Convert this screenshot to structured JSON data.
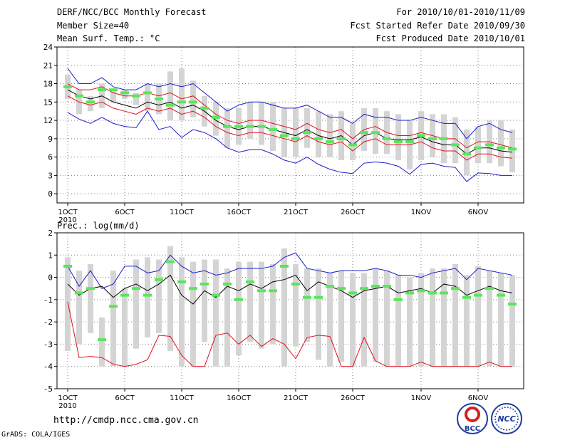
{
  "header": {
    "title": "DERF/NCC/BCC Monthly Forecast",
    "member_size": "Member Size=40",
    "variable": "Mean Surf. Temp.: °C",
    "period": "For 2010/10/01-2010/11/09",
    "fcst_started": "Fcst Started Refer Date 2010/09/30",
    "fcst_produced": "Fcst Produced Date 2010/10/01"
  },
  "footer": {
    "url": "http://cmdp.ncc.cma.gov.cn",
    "credit": "GrADS: COLA/IGES",
    "logo_bcc_text": "BCC",
    "logo_ncc_text": "NCC"
  },
  "colors": {
    "box": "#d4d4d4",
    "median": "#000000",
    "quartile_lines": "#e0101e",
    "extreme_lines": "#1c1ccc",
    "mean_marker": "#5ae65a",
    "grid": "#808080"
  },
  "chart_data": [
    {
      "type": "line",
      "title": "Mean Surf. Temp.: °C",
      "x_start_label": "1OCT 2010",
      "x_ticks": [
        "1OCT",
        "6OCT",
        "11OCT",
        "16OCT",
        "21OCT",
        "26OCT",
        "1NOV",
        "6NOV"
      ],
      "x_tick_days": [
        1,
        6,
        11,
        16,
        21,
        26,
        32,
        37
      ],
      "year_label": "2010",
      "ylim": [
        -1.5,
        24
      ],
      "yticks": [
        0,
        3,
        6,
        9,
        12,
        15,
        18,
        21,
        24
      ],
      "days": [
        1,
        2,
        3,
        4,
        5,
        6,
        7,
        8,
        9,
        10,
        11,
        12,
        13,
        14,
        15,
        16,
        17,
        18,
        19,
        20,
        21,
        22,
        23,
        24,
        25,
        26,
        27,
        28,
        29,
        30,
        31,
        32,
        33,
        34,
        35,
        36,
        37,
        38,
        39,
        40
      ],
      "series": [
        {
          "name": "max",
          "values": [
            20.5,
            18,
            18,
            19,
            17.5,
            17,
            17,
            18,
            17.5,
            18,
            17.5,
            18,
            16.5,
            15,
            13.5,
            14.5,
            15,
            15,
            14.5,
            14,
            14,
            14.5,
            13.5,
            12.5,
            12.5,
            11.5,
            13,
            12.5,
            12.5,
            12,
            12,
            12.5,
            12,
            11.5,
            11.5,
            9,
            11,
            11.5,
            10.5,
            10
          ]
        },
        {
          "name": "upper_quartile",
          "values": [
            18,
            17,
            17,
            17.5,
            16.5,
            16,
            16,
            16.5,
            16,
            16.5,
            15.5,
            16,
            14.5,
            13,
            12,
            11.5,
            12,
            12,
            11.5,
            11,
            10.5,
            11.5,
            10.5,
            10,
            10.5,
            9,
            10.5,
            11,
            10,
            9.5,
            9.5,
            10,
            9.5,
            9,
            9,
            7.5,
            8.5,
            8.5,
            8,
            7.5
          ]
        },
        {
          "name": "median",
          "values": [
            17,
            16,
            15.5,
            16,
            15,
            14.5,
            14,
            15,
            14.5,
            15,
            14,
            14.5,
            13.5,
            12,
            11,
            10.5,
            11,
            11,
            10.5,
            10,
            9.5,
            10.5,
            9.5,
            9,
            9.5,
            8,
            9.5,
            10,
            9,
            8.8,
            8.8,
            9.3,
            8.5,
            8,
            8,
            6.5,
            7.5,
            7.5,
            7,
            6.8
          ]
        },
        {
          "name": "lower_quartile",
          "values": [
            16,
            15,
            14.5,
            15,
            14,
            13.5,
            13,
            14,
            13.5,
            14,
            13,
            13.5,
            12.5,
            11,
            10,
            9.5,
            10,
            10,
            9.5,
            9,
            8.5,
            9.5,
            8.5,
            8,
            8.5,
            7,
            8.5,
            9,
            8,
            8,
            8,
            8.5,
            7.5,
            7,
            7,
            5.5,
            6.5,
            6.5,
            6,
            5.8
          ]
        },
        {
          "name": "min",
          "values": [
            13.3,
            12.2,
            11.5,
            12.5,
            11.5,
            11,
            10.8,
            13.5,
            10.5,
            11,
            9.2,
            10.5,
            10,
            9,
            7.5,
            6.8,
            7.2,
            7.2,
            6.5,
            5.5,
            5,
            6,
            4.8,
            4,
            3.5,
            3.3,
            5,
            5.2,
            5,
            4.5,
            3.2,
            4.8,
            5,
            4.5,
            4.3,
            2,
            3.4,
            3.3,
            3,
            3
          ]
        },
        {
          "name": "box_top",
          "values": [
            19.5,
            17,
            16,
            18,
            17,
            17,
            16.5,
            18,
            18,
            20,
            20.5,
            18.5,
            16,
            15,
            14,
            14,
            15,
            15,
            15,
            14,
            14,
            14,
            13.5,
            13,
            13.5,
            11.5,
            14,
            14,
            13.5,
            13,
            12,
            13.5,
            13,
            13,
            12.5,
            10.5,
            11,
            12,
            12,
            10.5
          ]
        },
        {
          "name": "box_bottom",
          "values": [
            15.5,
            13,
            13.5,
            14,
            15,
            15.5,
            14.5,
            13.5,
            13,
            12,
            12,
            12.5,
            11,
            9.5,
            7.5,
            8,
            9,
            8,
            7,
            6,
            6,
            7.5,
            6,
            6,
            5.5,
            5.5,
            7,
            6.5,
            6.5,
            5.5,
            4,
            5.5,
            6,
            5,
            5,
            3,
            5,
            5,
            4.5,
            3.5
          ]
        },
        {
          "name": "mean",
          "values": [
            17.5,
            16,
            15,
            17,
            17,
            16.5,
            16,
            16.5,
            15.5,
            14.5,
            15,
            15,
            14,
            12.5,
            11,
            11,
            11,
            11,
            10.5,
            9.5,
            9,
            10,
            9,
            8.5,
            9,
            8,
            10,
            10,
            9,
            8.5,
            8.5,
            9.5,
            9,
            9,
            8,
            6.5,
            7.5,
            8,
            7.5,
            7.3
          ]
        }
      ]
    },
    {
      "type": "line",
      "title": "Prec.: log(mm/d)",
      "x_ticks": [
        "1OCT",
        "6OCT",
        "11OCT",
        "16OCT",
        "21OCT",
        "26OCT",
        "1NOV",
        "6NOV"
      ],
      "x_tick_days": [
        1,
        6,
        11,
        16,
        21,
        26,
        32,
        37
      ],
      "year_label": "2010",
      "ylim": [
        -5,
        2
      ],
      "yticks": [
        -5,
        -4,
        -3,
        -2,
        -1,
        0,
        1,
        2
      ],
      "days": [
        1,
        2,
        3,
        4,
        5,
        6,
        7,
        8,
        9,
        10,
        11,
        12,
        13,
        14,
        15,
        16,
        17,
        18,
        19,
        20,
        21,
        22,
        23,
        24,
        25,
        26,
        27,
        28,
        29,
        30,
        31,
        32,
        33,
        34,
        35,
        36,
        37,
        38,
        39,
        40
      ],
      "series": [
        {
          "name": "max",
          "values": [
            0.5,
            -0.4,
            0.3,
            -0.5,
            -0.3,
            0.5,
            0.5,
            0.2,
            0.3,
            1.0,
            0.5,
            0.2,
            0.3,
            0.1,
            0.2,
            0.4,
            0.4,
            0.4,
            0.5,
            0.9,
            1.1,
            0.4,
            0.3,
            0.2,
            0.3,
            0.3,
            0.3,
            0.4,
            0.3,
            0.1,
            0.1,
            0.0,
            0.2,
            0.3,
            0.4,
            -0.1,
            0.4,
            0.3,
            0.2,
            0.1
          ]
        },
        {
          "name": "upper_quartile",
          "values": [
            -1.1,
            -3.6,
            -3.55,
            -3.6,
            -3.9,
            -4.0,
            -3.9,
            -3.7,
            -2.6,
            -2.65,
            -3.5,
            -4.0,
            -4.0,
            -2.6,
            -2.5,
            -3.0,
            -2.6,
            -3.1,
            -2.75,
            -3.0,
            -3.65,
            -2.7,
            -2.6,
            -2.65,
            -4.0,
            -4.0,
            -2.7,
            -3.75,
            -4.0,
            -4.0,
            -4.0,
            -3.8,
            -4.0,
            -4.0,
            -4.0,
            -4.0,
            -4.0,
            -3.8,
            -4.0,
            -4.0
          ]
        },
        {
          "name": "median",
          "values": [
            -0.3,
            -0.8,
            -0.5,
            -0.4,
            -0.9,
            -0.5,
            -0.3,
            -0.6,
            -0.3,
            0.1,
            -0.8,
            -1.2,
            -0.6,
            -0.9,
            -0.4,
            -0.6,
            -0.3,
            -0.5,
            -0.2,
            -0.1,
            0.1,
            -0.6,
            -0.2,
            -0.4,
            -0.6,
            -0.9,
            -0.6,
            -0.5,
            -0.4,
            -0.7,
            -0.6,
            -0.5,
            -0.7,
            -0.3,
            -0.4,
            -0.8,
            -0.6,
            -0.4,
            -0.6,
            -0.7
          ]
        },
        {
          "name": "box_top",
          "values": [
            0.9,
            0.3,
            0.6,
            -1.8,
            0.3,
            -0.5,
            0.8,
            0.9,
            0.8,
            1.4,
            0.9,
            0.7,
            0.8,
            0.8,
            0.4,
            0.7,
            0.7,
            0.7,
            0.6,
            1.3,
            0.6,
            0.4,
            0.4,
            0.2,
            0.3,
            0.2,
            0.2,
            0.4,
            0.3,
            0.1,
            0.0,
            0.2,
            0.4,
            0.4,
            0.6,
            0.1,
            0.5,
            0.3,
            0.2,
            0.1
          ]
        },
        {
          "name": "box_bottom",
          "values": [
            -3.3,
            -3.0,
            -2.5,
            -4.0,
            -4.0,
            -4.0,
            -3.2,
            -2.7,
            -2.5,
            -3.3,
            -4.0,
            -4.0,
            -2.9,
            -4.0,
            -4.0,
            -3.5,
            -2.9,
            -3.2,
            -3.0,
            -4.0,
            -3.1,
            -2.9,
            -3.7,
            -4.0,
            -3.8,
            -4.0,
            -4.0,
            -3.8,
            -4.0,
            -4.0,
            -4.0,
            -4.0,
            -4.0,
            -4.0,
            -4.0,
            -4.0,
            -4.0,
            -4.0,
            -4.0,
            -4.0
          ]
        },
        {
          "name": "mean",
          "values": [
            0.5,
            -0.7,
            -0.5,
            -2.8,
            -1.3,
            -0.8,
            -0.5,
            -0.8,
            -0.1,
            0.7,
            -0.2,
            -0.5,
            -0.3,
            -0.8,
            -0.3,
            -1.0,
            -0.2,
            -0.6,
            -0.6,
            0.5,
            -0.3,
            -0.9,
            -0.9,
            -0.4,
            -0.5,
            -0.7,
            -0.5,
            -0.4,
            -0.4,
            -1.0,
            -0.7,
            -0.6,
            -0.7,
            -0.7,
            -0.5,
            -0.9,
            -0.8,
            -0.5,
            -0.8,
            -1.2
          ]
        }
      ]
    }
  ]
}
